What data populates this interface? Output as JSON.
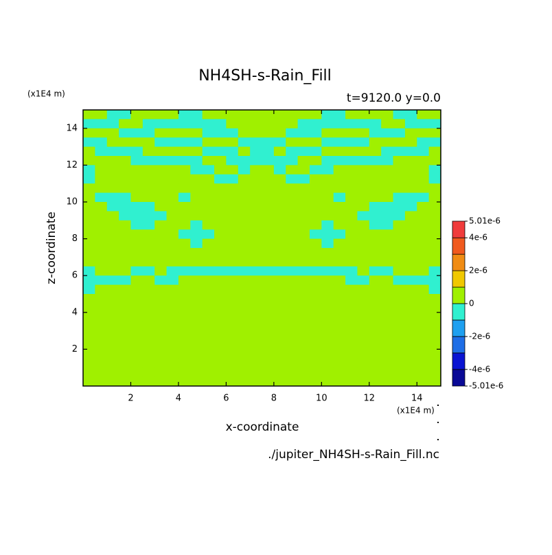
{
  "chart_data": {
    "type": "contour",
    "title": "NH4SH-s-Rain_Fill",
    "subtitle": "t=9120.0 y=0.0",
    "x_label": "x-coordinate",
    "y_label": "z-coordinate",
    "x_units": "(x1E4 m)",
    "y_units": "(x1E4 m)",
    "file": "./jupiter_NH4SH-s-Rain_Fill.nc",
    "xlim": [
      0,
      15
    ],
    "ylim": [
      0,
      15
    ],
    "xticks": [
      2,
      4,
      6,
      8,
      10,
      12,
      14
    ],
    "yticks": [
      2,
      4,
      6,
      8,
      10,
      12,
      14
    ],
    "grid": false,
    "x": [
      0.25,
      0.75,
      1.25,
      1.75,
      2.25,
      2.75,
      3.25,
      3.75,
      4.25,
      4.75,
      5.25,
      5.75,
      6.25,
      6.75,
      7.25,
      7.75,
      8.25,
      8.75,
      9.25,
      9.75,
      10.25,
      10.75,
      11.25,
      11.75,
      12.25,
      12.75,
      13.25,
      13.75,
      14.25,
      14.75
    ],
    "y": [
      14.75,
      14.25,
      13.75,
      13.25,
      12.75,
      12.25,
      11.75,
      11.25,
      10.75,
      10.25,
      9.75,
      9.25,
      8.75,
      8.25,
      7.75,
      7.25,
      6.75,
      6.25,
      5.75,
      5.25,
      4.75,
      4.25,
      3.75,
      3.25,
      2.75,
      2.25,
      1.75,
      1.25,
      0.75,
      0.25
    ],
    "z": [
      [
        5e-07,
        5e-07,
        -5e-07,
        -5e-07,
        5e-07,
        5e-07,
        5e-07,
        5e-07,
        -5e-07,
        -5e-07,
        5e-07,
        5e-07,
        5e-07,
        5e-07,
        5e-07,
        5e-07,
        5e-07,
        5e-07,
        5e-07,
        5e-07,
        -5e-07,
        -5e-07,
        5e-07,
        5e-07,
        5e-07,
        5e-07,
        -5e-07,
        -5e-07,
        5e-07,
        5e-07
      ],
      [
        -5e-07,
        -5e-07,
        -5e-07,
        5e-07,
        5e-07,
        -5e-07,
        -5e-07,
        -5e-07,
        -5e-07,
        -5e-07,
        -5e-07,
        -5e-07,
        5e-07,
        5e-07,
        5e-07,
        5e-07,
        5e-07,
        5e-07,
        -5e-07,
        -5e-07,
        -5e-07,
        -5e-07,
        -5e-07,
        -5e-07,
        -5e-07,
        5e-07,
        5e-07,
        -5e-07,
        -5e-07,
        -5e-07
      ],
      [
        5e-07,
        5e-07,
        5e-07,
        -5e-07,
        -5e-07,
        -5e-07,
        5e-07,
        5e-07,
        5e-07,
        5e-07,
        -5e-07,
        -5e-07,
        -5e-07,
        5e-07,
        5e-07,
        5e-07,
        5e-07,
        -5e-07,
        -5e-07,
        -5e-07,
        5e-07,
        5e-07,
        5e-07,
        5e-07,
        -5e-07,
        -5e-07,
        -5e-07,
        5e-07,
        5e-07,
        5e-07
      ],
      [
        -5e-07,
        -5e-07,
        5e-07,
        5e-07,
        5e-07,
        5e-07,
        -5e-07,
        -5e-07,
        -5e-07,
        -5e-07,
        5e-07,
        5e-07,
        5e-07,
        -5e-07,
        -5e-07,
        -5e-07,
        -5e-07,
        5e-07,
        5e-07,
        5e-07,
        -5e-07,
        -5e-07,
        -5e-07,
        -5e-07,
        5e-07,
        5e-07,
        5e-07,
        5e-07,
        -5e-07,
        -5e-07
      ],
      [
        5e-07,
        -5e-07,
        -5e-07,
        -5e-07,
        -5e-07,
        5e-07,
        5e-07,
        5e-07,
        5e-07,
        5e-07,
        -5e-07,
        -5e-07,
        -5e-07,
        5e-07,
        -5e-07,
        -5e-07,
        5e-07,
        -5e-07,
        -5e-07,
        -5e-07,
        5e-07,
        5e-07,
        5e-07,
        5e-07,
        5e-07,
        -5e-07,
        -5e-07,
        -5e-07,
        -5e-07,
        5e-07
      ],
      [
        5e-07,
        5e-07,
        5e-07,
        5e-07,
        -5e-07,
        -5e-07,
        -5e-07,
        -5e-07,
        -5e-07,
        -5e-07,
        5e-07,
        5e-07,
        -5e-07,
        -5e-07,
        -5e-07,
        -5e-07,
        -5e-07,
        -5e-07,
        5e-07,
        5e-07,
        -5e-07,
        -5e-07,
        -5e-07,
        -5e-07,
        -5e-07,
        -5e-07,
        5e-07,
        5e-07,
        5e-07,
        5e-07
      ],
      [
        -5e-07,
        5e-07,
        5e-07,
        5e-07,
        5e-07,
        5e-07,
        5e-07,
        5e-07,
        5e-07,
        -5e-07,
        -5e-07,
        5e-07,
        5e-07,
        -5e-07,
        5e-07,
        5e-07,
        -5e-07,
        5e-07,
        5e-07,
        -5e-07,
        -5e-07,
        5e-07,
        5e-07,
        5e-07,
        5e-07,
        5e-07,
        5e-07,
        5e-07,
        5e-07,
        -5e-07
      ],
      [
        -5e-07,
        5e-07,
        5e-07,
        5e-07,
        5e-07,
        5e-07,
        5e-07,
        5e-07,
        5e-07,
        5e-07,
        5e-07,
        -5e-07,
        -5e-07,
        5e-07,
        5e-07,
        5e-07,
        5e-07,
        -5e-07,
        -5e-07,
        5e-07,
        5e-07,
        5e-07,
        5e-07,
        5e-07,
        5e-07,
        5e-07,
        5e-07,
        5e-07,
        5e-07,
        -5e-07
      ],
      [
        5e-07,
        5e-07,
        5e-07,
        5e-07,
        5e-07,
        5e-07,
        5e-07,
        5e-07,
        5e-07,
        5e-07,
        5e-07,
        5e-07,
        5e-07,
        5e-07,
        5e-07,
        5e-07,
        5e-07,
        5e-07,
        5e-07,
        5e-07,
        5e-07,
        5e-07,
        5e-07,
        5e-07,
        5e-07,
        5e-07,
        5e-07,
        5e-07,
        5e-07,
        5e-07
      ],
      [
        5e-07,
        -5e-07,
        -5e-07,
        -5e-07,
        5e-07,
        5e-07,
        5e-07,
        5e-07,
        -5e-07,
        5e-07,
        5e-07,
        5e-07,
        5e-07,
        5e-07,
        5e-07,
        5e-07,
        5e-07,
        5e-07,
        5e-07,
        5e-07,
        5e-07,
        -5e-07,
        5e-07,
        5e-07,
        5e-07,
        5e-07,
        -5e-07,
        -5e-07,
        -5e-07,
        5e-07
      ],
      [
        5e-07,
        5e-07,
        -5e-07,
        -5e-07,
        -5e-07,
        -5e-07,
        5e-07,
        5e-07,
        5e-07,
        5e-07,
        5e-07,
        5e-07,
        5e-07,
        5e-07,
        5e-07,
        5e-07,
        5e-07,
        5e-07,
        5e-07,
        5e-07,
        5e-07,
        5e-07,
        5e-07,
        5e-07,
        -5e-07,
        -5e-07,
        -5e-07,
        -5e-07,
        5e-07,
        5e-07
      ],
      [
        5e-07,
        5e-07,
        5e-07,
        -5e-07,
        -5e-07,
        -5e-07,
        -5e-07,
        5e-07,
        5e-07,
        5e-07,
        5e-07,
        5e-07,
        5e-07,
        5e-07,
        5e-07,
        5e-07,
        5e-07,
        5e-07,
        5e-07,
        5e-07,
        5e-07,
        5e-07,
        5e-07,
        -5e-07,
        -5e-07,
        -5e-07,
        -5e-07,
        5e-07,
        5e-07,
        5e-07
      ],
      [
        5e-07,
        5e-07,
        5e-07,
        5e-07,
        -5e-07,
        -5e-07,
        5e-07,
        5e-07,
        5e-07,
        -5e-07,
        5e-07,
        5e-07,
        5e-07,
        5e-07,
        5e-07,
        5e-07,
        5e-07,
        5e-07,
        5e-07,
        5e-07,
        -5e-07,
        5e-07,
        5e-07,
        5e-07,
        -5e-07,
        -5e-07,
        5e-07,
        5e-07,
        5e-07,
        5e-07
      ],
      [
        5e-07,
        5e-07,
        5e-07,
        5e-07,
        5e-07,
        5e-07,
        5e-07,
        5e-07,
        -5e-07,
        -5e-07,
        -5e-07,
        5e-07,
        5e-07,
        5e-07,
        5e-07,
        5e-07,
        5e-07,
        5e-07,
        5e-07,
        -5e-07,
        -5e-07,
        -5e-07,
        5e-07,
        5e-07,
        5e-07,
        5e-07,
        5e-07,
        5e-07,
        5e-07,
        5e-07
      ],
      [
        5e-07,
        5e-07,
        5e-07,
        5e-07,
        5e-07,
        5e-07,
        5e-07,
        5e-07,
        5e-07,
        -5e-07,
        5e-07,
        5e-07,
        5e-07,
        5e-07,
        5e-07,
        5e-07,
        5e-07,
        5e-07,
        5e-07,
        5e-07,
        -5e-07,
        5e-07,
        5e-07,
        5e-07,
        5e-07,
        5e-07,
        5e-07,
        5e-07,
        5e-07,
        5e-07
      ],
      [
        5e-07,
        5e-07,
        5e-07,
        5e-07,
        5e-07,
        5e-07,
        5e-07,
        5e-07,
        5e-07,
        5e-07,
        5e-07,
        5e-07,
        5e-07,
        5e-07,
        5e-07,
        5e-07,
        5e-07,
        5e-07,
        5e-07,
        5e-07,
        5e-07,
        5e-07,
        5e-07,
        5e-07,
        5e-07,
        5e-07,
        5e-07,
        5e-07,
        5e-07,
        5e-07
      ],
      [
        5e-07,
        5e-07,
        5e-07,
        5e-07,
        5e-07,
        5e-07,
        5e-07,
        5e-07,
        5e-07,
        5e-07,
        5e-07,
        5e-07,
        5e-07,
        5e-07,
        5e-07,
        5e-07,
        5e-07,
        5e-07,
        5e-07,
        5e-07,
        5e-07,
        5e-07,
        5e-07,
        5e-07,
        5e-07,
        5e-07,
        5e-07,
        5e-07,
        5e-07,
        5e-07
      ],
      [
        -5e-07,
        5e-07,
        5e-07,
        5e-07,
        -5e-07,
        -5e-07,
        5e-07,
        -5e-07,
        -5e-07,
        -5e-07,
        -5e-07,
        -5e-07,
        -5e-07,
        -5e-07,
        -5e-07,
        -5e-07,
        -5e-07,
        -5e-07,
        -5e-07,
        -5e-07,
        -5e-07,
        -5e-07,
        -5e-07,
        5e-07,
        -5e-07,
        -5e-07,
        5e-07,
        5e-07,
        5e-07,
        -5e-07
      ],
      [
        -5e-07,
        -5e-07,
        -5e-07,
        -5e-07,
        5e-07,
        5e-07,
        -5e-07,
        -5e-07,
        5e-07,
        5e-07,
        5e-07,
        5e-07,
        5e-07,
        5e-07,
        5e-07,
        5e-07,
        5e-07,
        5e-07,
        5e-07,
        5e-07,
        5e-07,
        5e-07,
        -5e-07,
        -5e-07,
        5e-07,
        5e-07,
        -5e-07,
        -5e-07,
        -5e-07,
        -5e-07
      ],
      [
        -5e-07,
        5e-07,
        5e-07,
        5e-07,
        5e-07,
        5e-07,
        5e-07,
        5e-07,
        5e-07,
        5e-07,
        5e-07,
        5e-07,
        5e-07,
        5e-07,
        5e-07,
        5e-07,
        5e-07,
        5e-07,
        5e-07,
        5e-07,
        5e-07,
        5e-07,
        5e-07,
        5e-07,
        5e-07,
        5e-07,
        5e-07,
        5e-07,
        5e-07,
        -5e-07
      ],
      [
        5e-07,
        5e-07,
        5e-07,
        5e-07,
        5e-07,
        5e-07,
        5e-07,
        5e-07,
        5e-07,
        5e-07,
        5e-07,
        5e-07,
        5e-07,
        5e-07,
        5e-07,
        5e-07,
        5e-07,
        5e-07,
        5e-07,
        5e-07,
        5e-07,
        5e-07,
        5e-07,
        5e-07,
        5e-07,
        5e-07,
        5e-07,
        5e-07,
        5e-07,
        5e-07
      ],
      [
        5e-07,
        5e-07,
        5e-07,
        5e-07,
        5e-07,
        5e-07,
        5e-07,
        5e-07,
        5e-07,
        5e-07,
        5e-07,
        5e-07,
        5e-07,
        5e-07,
        5e-07,
        5e-07,
        5e-07,
        5e-07,
        5e-07,
        5e-07,
        5e-07,
        5e-07,
        5e-07,
        5e-07,
        5e-07,
        5e-07,
        5e-07,
        5e-07,
        5e-07,
        5e-07
      ],
      [
        5e-07,
        5e-07,
        5e-07,
        5e-07,
        5e-07,
        5e-07,
        5e-07,
        5e-07,
        5e-07,
        5e-07,
        5e-07,
        5e-07,
        5e-07,
        5e-07,
        5e-07,
        5e-07,
        5e-07,
        5e-07,
        5e-07,
        5e-07,
        5e-07,
        5e-07,
        5e-07,
        5e-07,
        5e-07,
        5e-07,
        5e-07,
        5e-07,
        5e-07,
        5e-07
      ],
      [
        5e-07,
        5e-07,
        5e-07,
        5e-07,
        5e-07,
        5e-07,
        5e-07,
        5e-07,
        5e-07,
        5e-07,
        5e-07,
        5e-07,
        5e-07,
        5e-07,
        5e-07,
        5e-07,
        5e-07,
        5e-07,
        5e-07,
        5e-07,
        5e-07,
        5e-07,
        5e-07,
        5e-07,
        5e-07,
        5e-07,
        5e-07,
        5e-07,
        5e-07,
        5e-07
      ],
      [
        5e-07,
        5e-07,
        5e-07,
        5e-07,
        5e-07,
        5e-07,
        5e-07,
        5e-07,
        5e-07,
        5e-07,
        5e-07,
        5e-07,
        5e-07,
        5e-07,
        5e-07,
        5e-07,
        5e-07,
        5e-07,
        5e-07,
        5e-07,
        5e-07,
        5e-07,
        5e-07,
        5e-07,
        5e-07,
        5e-07,
        5e-07,
        5e-07,
        5e-07,
        5e-07
      ],
      [
        5e-07,
        5e-07,
        5e-07,
        5e-07,
        5e-07,
        5e-07,
        5e-07,
        5e-07,
        5e-07,
        5e-07,
        5e-07,
        5e-07,
        5e-07,
        5e-07,
        5e-07,
        5e-07,
        5e-07,
        5e-07,
        5e-07,
        5e-07,
        5e-07,
        5e-07,
        5e-07,
        5e-07,
        5e-07,
        5e-07,
        5e-07,
        5e-07,
        5e-07,
        5e-07
      ],
      [
        5e-07,
        5e-07,
        5e-07,
        5e-07,
        5e-07,
        5e-07,
        5e-07,
        5e-07,
        5e-07,
        5e-07,
        5e-07,
        5e-07,
        5e-07,
        5e-07,
        5e-07,
        5e-07,
        5e-07,
        5e-07,
        5e-07,
        5e-07,
        5e-07,
        5e-07,
        5e-07,
        5e-07,
        5e-07,
        5e-07,
        5e-07,
        5e-07,
        5e-07,
        5e-07
      ],
      [
        5e-07,
        5e-07,
        5e-07,
        5e-07,
        5e-07,
        5e-07,
        5e-07,
        5e-07,
        5e-07,
        5e-07,
        5e-07,
        5e-07,
        5e-07,
        5e-07,
        5e-07,
        5e-07,
        5e-07,
        5e-07,
        5e-07,
        5e-07,
        5e-07,
        5e-07,
        5e-07,
        5e-07,
        5e-07,
        5e-07,
        5e-07,
        5e-07,
        5e-07,
        5e-07
      ],
      [
        5e-07,
        5e-07,
        5e-07,
        5e-07,
        5e-07,
        5e-07,
        5e-07,
        5e-07,
        5e-07,
        5e-07,
        5e-07,
        5e-07,
        5e-07,
        5e-07,
        5e-07,
        5e-07,
        5e-07,
        5e-07,
        5e-07,
        5e-07,
        5e-07,
        5e-07,
        5e-07,
        5e-07,
        5e-07,
        5e-07,
        5e-07,
        5e-07,
        5e-07,
        5e-07
      ],
      [
        5e-07,
        5e-07,
        5e-07,
        5e-07,
        5e-07,
        5e-07,
        5e-07,
        5e-07,
        5e-07,
        5e-07,
        5e-07,
        5e-07,
        5e-07,
        5e-07,
        5e-07,
        5e-07,
        5e-07,
        5e-07,
        5e-07,
        5e-07,
        5e-07,
        5e-07,
        5e-07,
        5e-07,
        5e-07,
        5e-07,
        5e-07,
        5e-07,
        5e-07,
        5e-07
      ]
    ],
    "colorbar": {
      "levels": [
        -5.01e-06,
        -4e-06,
        -3e-06,
        -2e-06,
        -1e-06,
        0,
        1e-06,
        2e-06,
        3e-06,
        4e-06,
        5.01e-06
      ],
      "colors": [
        "#0a0a96",
        "#0a14d2",
        "#1e6ee6",
        "#1ea0f0",
        "#30f0d0",
        "#a0f000",
        "#f0c800",
        "#f08c14",
        "#f05a1e",
        "#f03c3c"
      ],
      "ticks": [
        {
          "value": 5.01e-06,
          "label": "5.01e-6"
        },
        {
          "value": 4e-06,
          "label": "4e-6"
        },
        {
          "value": 2e-06,
          "label": "2e-6"
        },
        0,
        {
          "value": -2e-06,
          "label": "-2e-6"
        },
        {
          "value": -4e-06,
          "label": "-4e-6"
        },
        {
          "value": -5.01e-06,
          "label": "-5.01e-6"
        }
      ]
    }
  }
}
